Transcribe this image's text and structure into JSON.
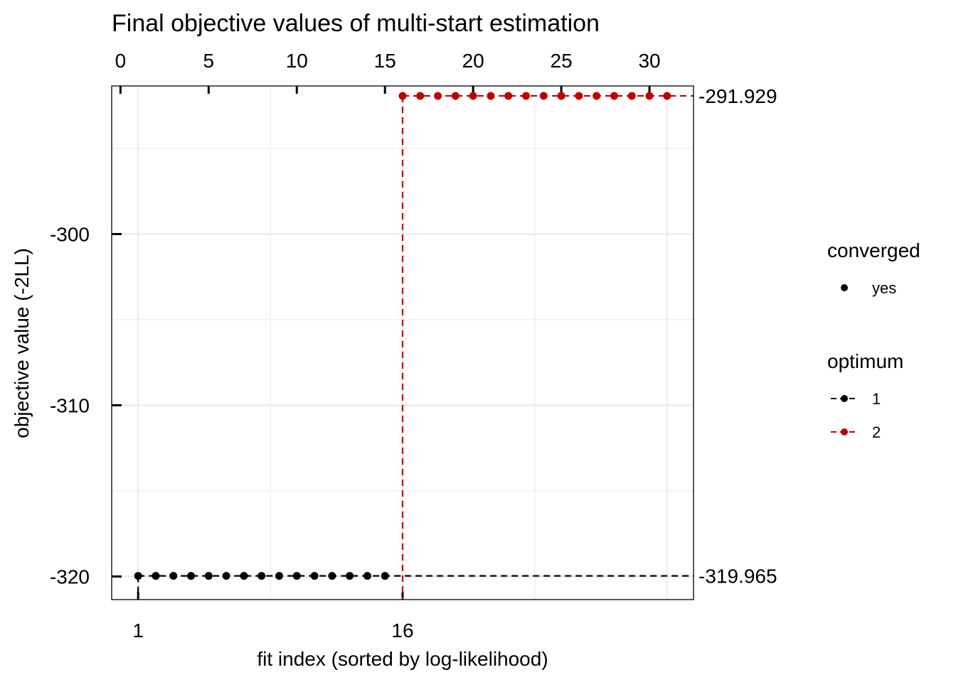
{
  "chart_data": {
    "type": "scatter",
    "title": "Final objective values of multi-start estimation",
    "xlabel": "fit index (sorted by log-likelihood)",
    "ylabel": "objective value (-2LL)",
    "x_range": [
      -0.5,
      32.5
    ],
    "top_axis": {
      "ticks": [
        0,
        5,
        10,
        15,
        20,
        25,
        30
      ],
      "labels": [
        "0",
        "5",
        "10",
        "15",
        "20",
        "25",
        "30"
      ]
    },
    "bottom_axis": {
      "ticks": [
        1,
        16
      ],
      "labels": [
        "1",
        "16"
      ]
    },
    "ylim": [
      -321.35,
      -291.35
    ],
    "y_ticks": [
      -320,
      -310,
      -300
    ],
    "y_tick_labels": [
      "-320",
      "-310",
      "-300"
    ],
    "right_labels": [
      {
        "value": -319.965,
        "label": "-319.965"
      },
      {
        "value": -291.929,
        "label": "-291.929"
      }
    ],
    "grid": true,
    "series": [
      {
        "name": "1",
        "color": "#000000",
        "x": [
          1,
          2,
          3,
          4,
          5,
          6,
          7,
          8,
          9,
          10,
          11,
          12,
          13,
          14,
          15
        ],
        "y": -319.965,
        "boundary_x": 16
      },
      {
        "name": "2",
        "color": "#c00000",
        "x": [
          16,
          17,
          18,
          19,
          20,
          21,
          22,
          23,
          24,
          25,
          26,
          27,
          28,
          29,
          30,
          31
        ],
        "y": -291.929,
        "boundary_x": 16
      }
    ],
    "legend": {
      "placement": "right",
      "converged": {
        "title": "converged",
        "items": [
          {
            "label": "yes",
            "icon": "dot-icon"
          }
        ]
      },
      "optimum": {
        "title": "optimum",
        "items": [
          {
            "label": "1",
            "color": "#000000",
            "icon": "dashed-line-dot-icon"
          },
          {
            "label": "2",
            "color": "#c00000",
            "icon": "dashed-line-dot-icon"
          }
        ]
      }
    }
  }
}
